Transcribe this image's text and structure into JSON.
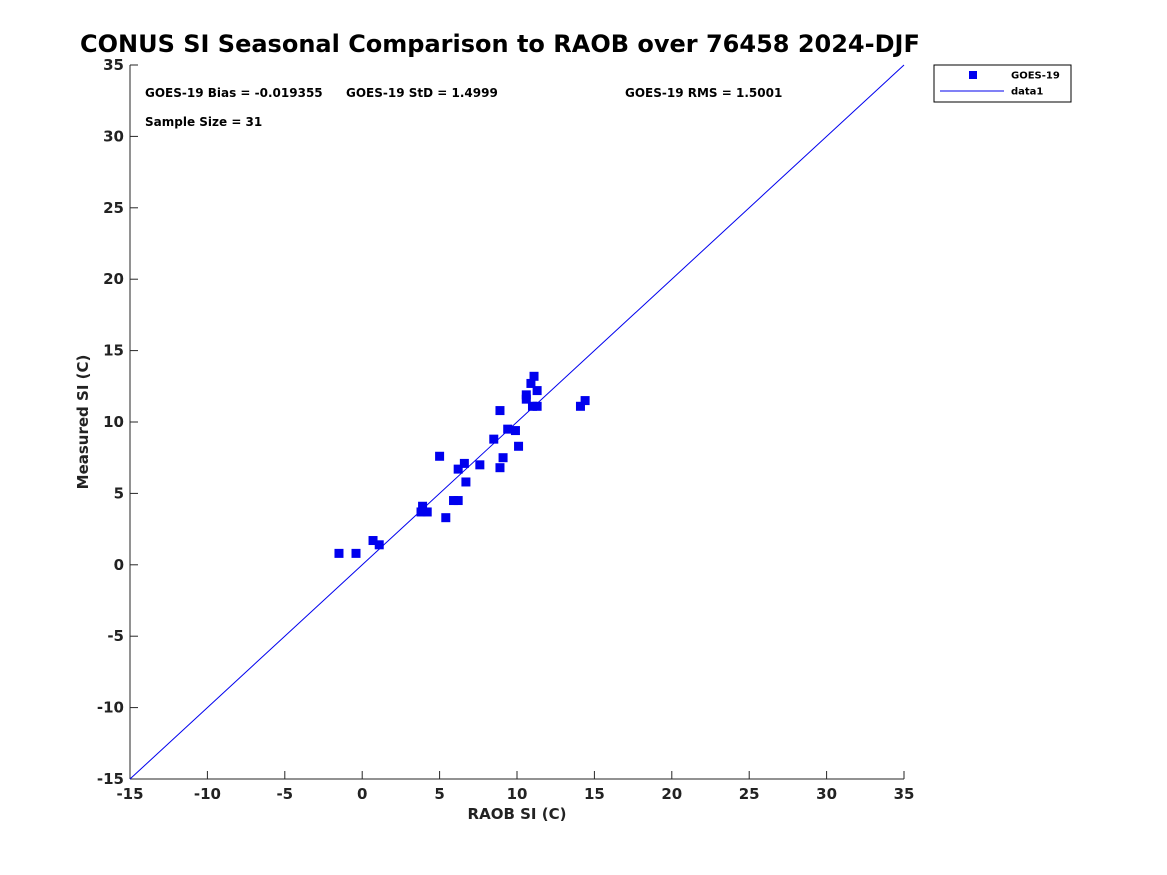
{
  "chart_data": {
    "type": "scatter",
    "title": "CONUS SI Seasonal Comparison to RAOB over 76458 2024-DJF",
    "xlabel": "RAOB SI (C)",
    "ylabel": "Measured SI (C)",
    "xlim": [
      -15,
      35
    ],
    "ylim": [
      -15,
      35
    ],
    "xticks": [
      -15,
      -10,
      -5,
      0,
      5,
      10,
      15,
      20,
      25,
      30,
      35
    ],
    "yticks": [
      -15,
      -10,
      -5,
      0,
      5,
      10,
      15,
      20,
      25,
      30,
      35
    ],
    "grid": false,
    "legend_position": "outside-top-right",
    "stats": {
      "bias": "GOES-19 Bias = -0.019355",
      "std": "GOES-19 StD = 1.4999",
      "rms": "GOES-19 RMS = 1.5001",
      "sample_size": "Sample Size = 31"
    },
    "series": [
      {
        "name": "GOES-19",
        "marker": "square",
        "color": "#0000ee",
        "points": [
          [
            -1.5,
            0.8
          ],
          [
            -0.4,
            0.8
          ],
          [
            0.7,
            1.7
          ],
          [
            1.1,
            1.4
          ],
          [
            3.8,
            3.7
          ],
          [
            3.9,
            4.1
          ],
          [
            4.2,
            3.7
          ],
          [
            5.0,
            7.6
          ],
          [
            5.4,
            3.3
          ],
          [
            5.9,
            4.5
          ],
          [
            6.2,
            4.5
          ],
          [
            6.2,
            6.7
          ],
          [
            6.6,
            7.1
          ],
          [
            6.7,
            5.8
          ],
          [
            7.6,
            7.0
          ],
          [
            8.5,
            8.8
          ],
          [
            8.9,
            6.8
          ],
          [
            8.9,
            10.8
          ],
          [
            9.1,
            7.5
          ],
          [
            9.4,
            9.5
          ],
          [
            9.9,
            9.4
          ],
          [
            10.1,
            8.3
          ],
          [
            10.6,
            11.9
          ],
          [
            10.6,
            11.6
          ],
          [
            10.9,
            12.7
          ],
          [
            11.0,
            11.1
          ],
          [
            11.1,
            13.2
          ],
          [
            11.3,
            12.2
          ],
          [
            11.3,
            11.1
          ],
          [
            14.1,
            11.1
          ],
          [
            14.4,
            11.5
          ]
        ]
      },
      {
        "name": "data1",
        "type": "line",
        "color": "#0000ee",
        "points": [
          [
            -15,
            -15
          ],
          [
            35,
            35
          ]
        ]
      }
    ]
  }
}
